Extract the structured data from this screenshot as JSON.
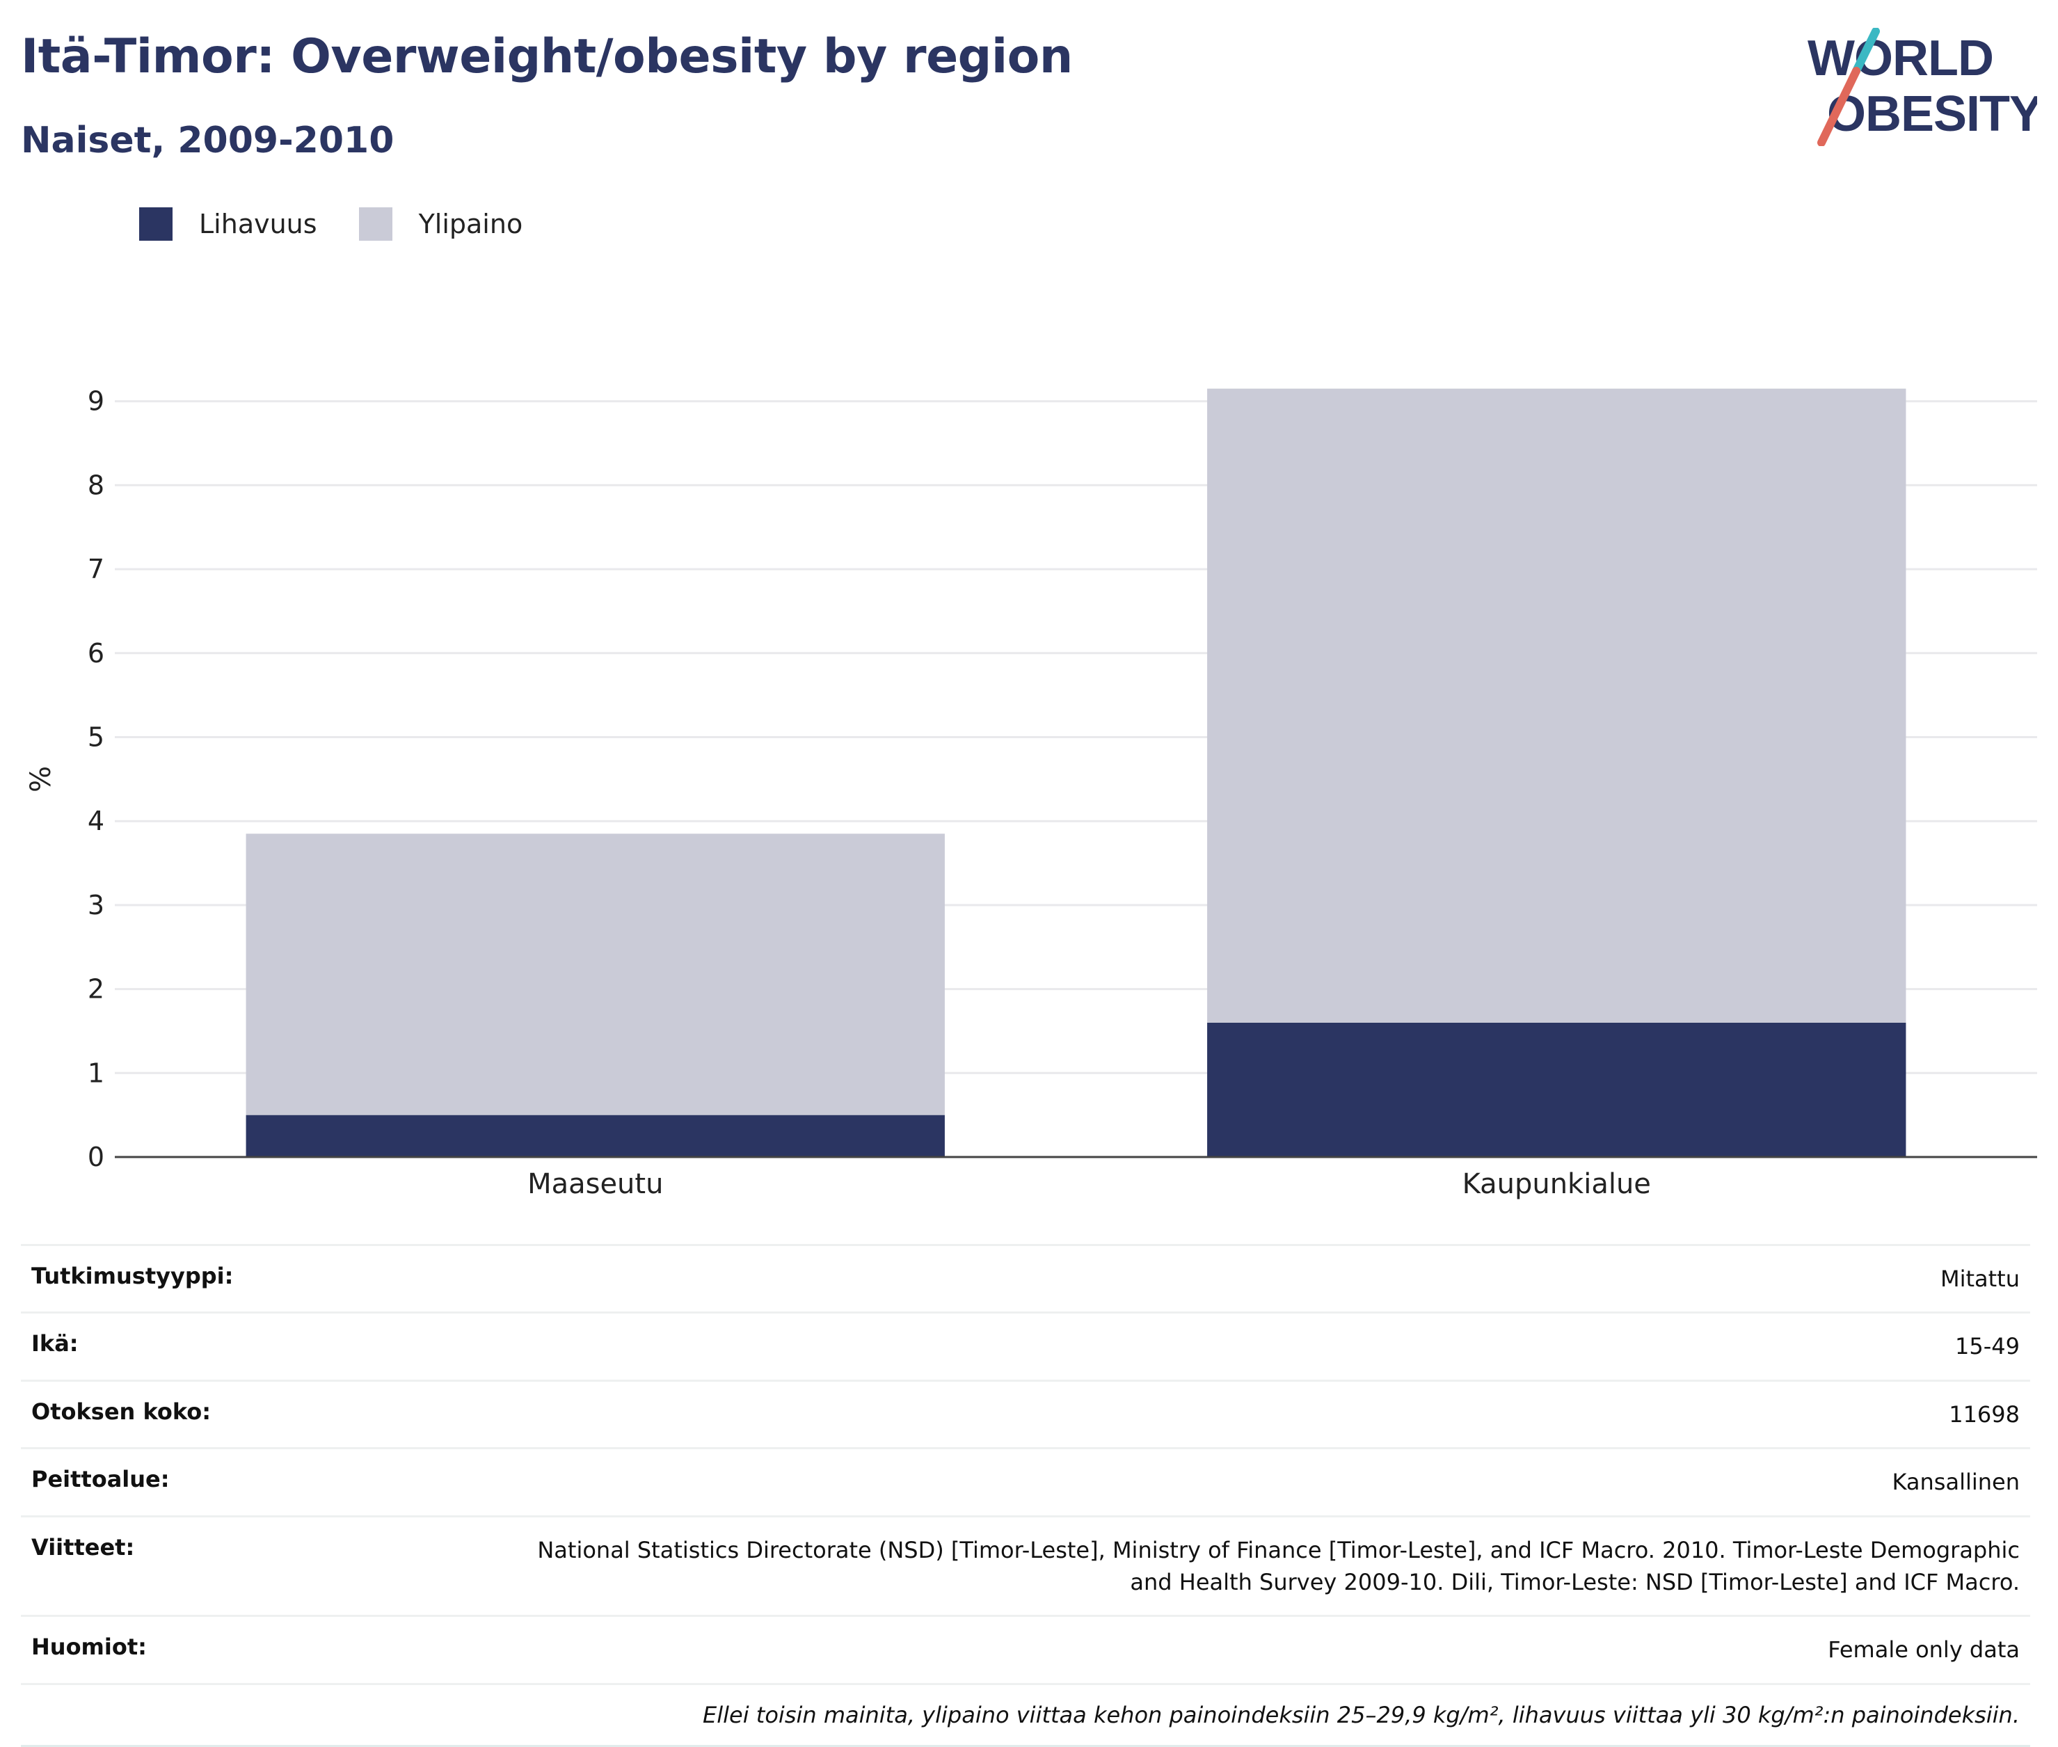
{
  "header": {
    "title": "Itä-Timor: Overweight/obesity by region",
    "subtitle": "Naiset, 2009-2010"
  },
  "logo": {
    "line1": "WORLD",
    "line2": "OBESITY"
  },
  "colors": {
    "obesity": "#2b3562",
    "overweight": "#cacbd7",
    "title": "#2b3562",
    "logo_slash_teal": "#3bb8c3",
    "logo_slash_red": "#e0685a"
  },
  "chart_data": {
    "type": "bar",
    "stacked": true,
    "categories": [
      "Maaseutu",
      "Kaupunkialue"
    ],
    "series": [
      {
        "name": "Lihavuus",
        "values": [
          0.5,
          1.6
        ]
      },
      {
        "name": "Ylipaino",
        "values": [
          3.35,
          7.55
        ]
      }
    ],
    "ylabel": "%",
    "ylim": [
      0,
      9
    ],
    "yticks": [
      "0",
      "1",
      "2",
      "3",
      "4",
      "5",
      "6",
      "7",
      "8",
      "9"
    ],
    "grid": true,
    "legend_position": "top-left"
  },
  "info": {
    "rows": [
      {
        "label": "Tutkimustyyppi:",
        "value": "Mitattu"
      },
      {
        "label": "Ikä:",
        "value": "15-49"
      },
      {
        "label": "Otoksen koko:",
        "value": "11698"
      },
      {
        "label": "Peittoalue:",
        "value": "Kansallinen"
      },
      {
        "label": "Viitteet:",
        "value": "National Statistics Directorate (NSD) [Timor-Leste], Ministry of Finance [Timor-Leste], and ICF Macro. 2010. Timor-Leste Demographic and Health Survey 2009-10. Dili, Timor-Leste: NSD [Timor-Leste] and ICF Macro."
      },
      {
        "label": "Huomiot:",
        "value": "Female only data"
      }
    ],
    "footnote": "Ellei toisin mainita, ylipaino viittaa kehon painoindeksiin 25–29,9 kg/m², lihavuus viittaa yli 30 kg/m²:n painoindeksiin."
  }
}
